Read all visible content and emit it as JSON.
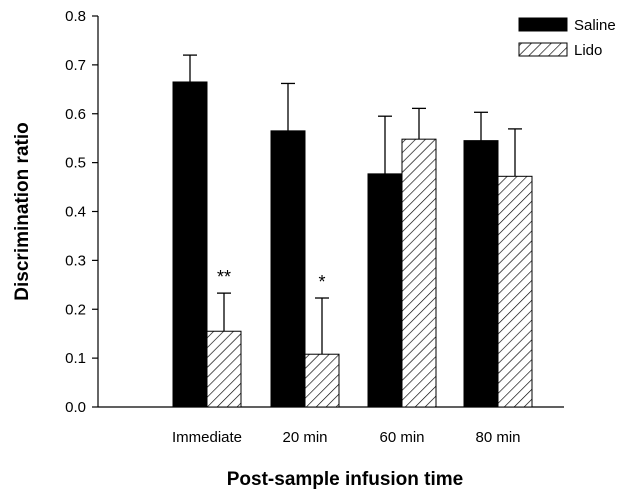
{
  "chart_data": {
    "type": "bar",
    "title": "",
    "xlabel": "Post-sample infusion time",
    "ylabel": "Discrimination ratio",
    "categories": [
      "Immediate",
      "20 min",
      "60 min",
      "80 min"
    ],
    "ylim": [
      0,
      0.8
    ],
    "yticks": [
      "0.0",
      "0.1",
      "0.2",
      "0.3",
      "0.4",
      "0.5",
      "0.6",
      "0.7",
      "0.8"
    ],
    "series": [
      {
        "name": "Saline",
        "fill": "solid",
        "color": "#000000",
        "values": [
          0.665,
          0.565,
          0.477,
          0.545
        ],
        "errors": [
          0.055,
          0.097,
          0.118,
          0.058
        ]
      },
      {
        "name": "Lido",
        "fill": "hatched",
        "color": "#000000",
        "values": [
          0.155,
          0.108,
          0.548,
          0.472
        ],
        "errors": [
          0.078,
          0.115,
          0.063,
          0.097
        ]
      }
    ],
    "annotations": [
      {
        "category": "Immediate",
        "series": "Lido",
        "text": "**"
      },
      {
        "category": "20 min",
        "series": "Lido",
        "text": "*"
      }
    ],
    "legend_position": "top-right",
    "grid": false
  }
}
